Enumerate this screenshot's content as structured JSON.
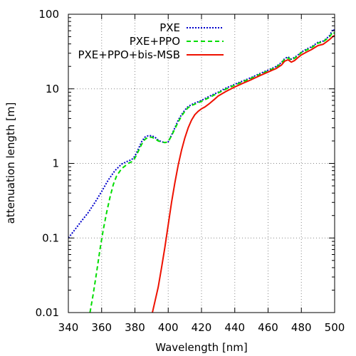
{
  "chart_data": {
    "type": "line",
    "xlabel": "Wavelength [nm]",
    "ylabel": "attenuation length [m]",
    "xlim": [
      340,
      500
    ],
    "ylim": [
      0.01,
      100
    ],
    "yscale": "log",
    "grid": true,
    "legend_position": "top-left",
    "x_ticks": [
      340,
      360,
      380,
      400,
      420,
      440,
      460,
      480,
      500
    ],
    "x_tick_labels": [
      "340",
      "360",
      "380",
      "400",
      "420",
      "440",
      "460",
      "480",
      "500"
    ],
    "y_ticks": [
      0.01,
      0.1,
      1,
      10,
      100
    ],
    "y_tick_labels": [
      "0.01",
      "0.1",
      "1",
      "10",
      "100"
    ],
    "series": [
      {
        "name": "PXE",
        "color": "#0000cc",
        "style": "dotted",
        "points": [
          [
            340,
            0.1
          ],
          [
            344,
            0.13
          ],
          [
            348,
            0.17
          ],
          [
            352,
            0.22
          ],
          [
            356,
            0.3
          ],
          [
            360,
            0.42
          ],
          [
            364,
            0.6
          ],
          [
            368,
            0.8
          ],
          [
            372,
            0.98
          ],
          [
            376,
            1.08
          ],
          [
            378,
            1.12
          ],
          [
            380,
            1.25
          ],
          [
            382,
            1.55
          ],
          [
            384,
            1.95
          ],
          [
            386,
            2.25
          ],
          [
            388,
            2.35
          ],
          [
            390,
            2.35
          ],
          [
            392,
            2.25
          ],
          [
            394,
            2.05
          ],
          [
            396,
            1.95
          ],
          [
            398,
            1.9
          ],
          [
            400,
            1.95
          ],
          [
            402,
            2.4
          ],
          [
            404,
            3.0
          ],
          [
            406,
            3.8
          ],
          [
            408,
            4.5
          ],
          [
            410,
            5.2
          ],
          [
            412,
            5.8
          ],
          [
            415,
            6.3
          ],
          [
            420,
            7.0
          ],
          [
            425,
            8.0
          ],
          [
            430,
            9.0
          ],
          [
            435,
            10.3
          ],
          [
            440,
            11.5
          ],
          [
            445,
            12.8
          ],
          [
            450,
            14.2
          ],
          [
            455,
            16.0
          ],
          [
            460,
            17.8
          ],
          [
            465,
            20.0
          ],
          [
            468,
            22.5
          ],
          [
            470,
            25.5
          ],
          [
            472,
            26.8
          ],
          [
            474,
            25.0
          ],
          [
            476,
            26.5
          ],
          [
            478,
            28.5
          ],
          [
            480,
            31.0
          ],
          [
            483,
            34.0
          ],
          [
            486,
            36.5
          ],
          [
            490,
            42.0
          ],
          [
            493,
            43.5
          ],
          [
            495,
            47.0
          ],
          [
            497,
            52.0
          ],
          [
            499,
            63.0
          ],
          [
            500,
            60.0
          ]
        ]
      },
      {
        "name": "PXE+PPO",
        "color": "#00dd00",
        "style": "dashed",
        "points": [
          [
            353,
            0.01
          ],
          [
            355,
            0.018
          ],
          [
            357,
            0.035
          ],
          [
            359,
            0.07
          ],
          [
            361,
            0.13
          ],
          [
            363,
            0.22
          ],
          [
            365,
            0.35
          ],
          [
            367,
            0.52
          ],
          [
            369,
            0.68
          ],
          [
            372,
            0.85
          ],
          [
            376,
            1.0
          ],
          [
            378,
            1.05
          ],
          [
            380,
            1.18
          ],
          [
            382,
            1.45
          ],
          [
            384,
            1.8
          ],
          [
            386,
            2.1
          ],
          [
            388,
            2.25
          ],
          [
            390,
            2.25
          ],
          [
            392,
            2.15
          ],
          [
            394,
            2.0
          ],
          [
            396,
            1.95
          ],
          [
            398,
            1.9
          ],
          [
            400,
            1.95
          ],
          [
            402,
            2.35
          ],
          [
            404,
            2.9
          ],
          [
            406,
            3.6
          ],
          [
            408,
            4.3
          ],
          [
            410,
            5.0
          ],
          [
            412,
            5.6
          ],
          [
            415,
            6.1
          ],
          [
            420,
            6.8
          ],
          [
            425,
            7.7
          ],
          [
            430,
            8.8
          ],
          [
            435,
            10.0
          ],
          [
            440,
            11.2
          ],
          [
            445,
            12.5
          ],
          [
            450,
            13.9
          ],
          [
            455,
            15.6
          ],
          [
            460,
            17.4
          ],
          [
            465,
            19.5
          ],
          [
            468,
            22.0
          ],
          [
            470,
            25.0
          ],
          [
            472,
            26.0
          ],
          [
            474,
            24.3
          ],
          [
            476,
            25.8
          ],
          [
            478,
            28.0
          ],
          [
            480,
            30.5
          ],
          [
            483,
            33.0
          ],
          [
            486,
            35.5
          ],
          [
            490,
            41.0
          ],
          [
            493,
            42.5
          ],
          [
            495,
            46.0
          ],
          [
            497,
            50.0
          ],
          [
            499,
            58.0
          ],
          [
            500,
            55.0
          ]
        ]
      },
      {
        "name": "PXE+PPO+bis-MSB",
        "color": "#ee1100",
        "style": "solid",
        "points": [
          [
            390.5,
            0.01
          ],
          [
            392,
            0.014
          ],
          [
            394,
            0.022
          ],
          [
            396,
            0.04
          ],
          [
            398,
            0.075
          ],
          [
            400,
            0.15
          ],
          [
            402,
            0.3
          ],
          [
            404,
            0.55
          ],
          [
            406,
            0.95
          ],
          [
            408,
            1.5
          ],
          [
            410,
            2.2
          ],
          [
            412,
            3.0
          ],
          [
            414,
            3.8
          ],
          [
            416,
            4.5
          ],
          [
            418,
            5.0
          ],
          [
            420,
            5.4
          ],
          [
            422,
            5.7
          ],
          [
            425,
            6.4
          ],
          [
            428,
            7.3
          ],
          [
            430,
            8.0
          ],
          [
            435,
            9.3
          ],
          [
            440,
            10.6
          ],
          [
            445,
            11.9
          ],
          [
            450,
            13.3
          ],
          [
            455,
            15.0
          ],
          [
            460,
            16.8
          ],
          [
            465,
            18.8
          ],
          [
            468,
            20.8
          ],
          [
            470,
            23.5
          ],
          [
            472,
            24.5
          ],
          [
            474,
            22.8
          ],
          [
            476,
            24.0
          ],
          [
            478,
            26.3
          ],
          [
            480,
            28.5
          ],
          [
            483,
            31.0
          ],
          [
            486,
            33.5
          ],
          [
            490,
            38.0
          ],
          [
            493,
            39.5
          ],
          [
            495,
            42.5
          ],
          [
            497,
            46.0
          ],
          [
            499,
            50.5
          ],
          [
            500,
            52.0
          ]
        ]
      }
    ]
  }
}
